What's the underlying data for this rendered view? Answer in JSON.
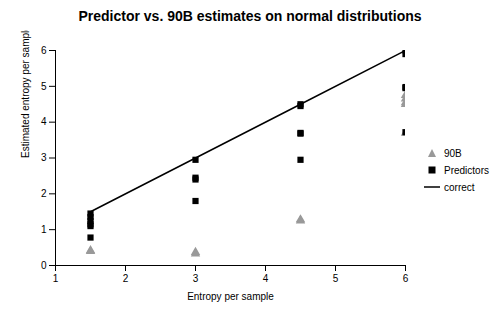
{
  "chart_data": {
    "type": "scatter",
    "title": "Predictor vs. 90B estimates on normal distributions",
    "x_label": "Entropy per sample",
    "y_label": "Estimated entropy per sample",
    "xlim": [
      1,
      6
    ],
    "xticks": [
      1,
      2,
      3,
      4,
      5,
      6
    ],
    "ylim": [
      0,
      6
    ],
    "yticks": [
      0,
      1,
      2,
      3,
      4,
      5,
      6
    ],
    "grid": false,
    "legend": "right",
    "series": [
      {
        "name": "90B",
        "type": "scatter",
        "marker": "triangle",
        "color": "#999999",
        "x": [
          1.5,
          1.5,
          3,
          3,
          4.5,
          4.5,
          6,
          6,
          6,
          6,
          6
        ],
        "values": [
          0.42,
          0.4,
          0.37,
          0.33,
          1.28,
          1.25,
          4.75,
          4.65,
          4.55,
          4.5,
          3.7
        ]
      },
      {
        "name": "Predictors",
        "type": "scatter",
        "marker": "square",
        "color": "#000000",
        "x": [
          1.5,
          1.5,
          1.5,
          1.5,
          1.5,
          1.5,
          3,
          3,
          3,
          3,
          4.5,
          4.5,
          4.5,
          4.5,
          4.5,
          6,
          6,
          6,
          6,
          6
        ],
        "values": [
          1.45,
          1.35,
          1.25,
          1.15,
          1.1,
          0.78,
          2.95,
          2.45,
          2.4,
          1.8,
          4.5,
          4.45,
          3.7,
          3.68,
          2.95,
          6.0,
          5.9,
          4.98,
          4.95,
          3.72
        ]
      },
      {
        "name": "correct",
        "type": "line",
        "line_style": "solid",
        "color": "#000000",
        "x": [
          1.5,
          3,
          4.5,
          6
        ],
        "values": [
          1.5,
          3,
          4.5,
          6
        ]
      }
    ]
  }
}
